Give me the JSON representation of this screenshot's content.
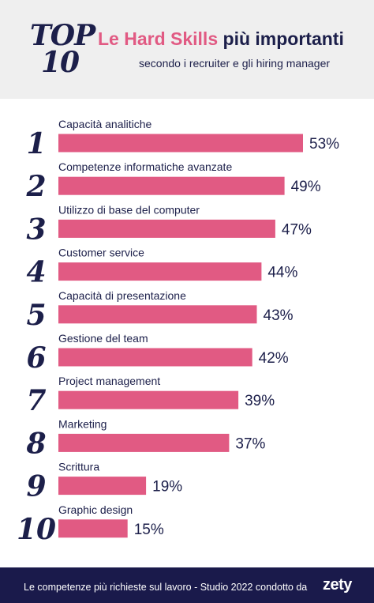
{
  "header": {
    "badge_line1": "TOP",
    "badge_line2": "10",
    "title_accent": "Le Hard Skills",
    "title_rest": "più importanti",
    "subtitle": "secondo i recruiter e gli hiring manager"
  },
  "colors": {
    "bar": "#e15a83",
    "text": "#1c1f4a",
    "header_bg": "#efefef",
    "footer_bg": "#1a1a4b"
  },
  "chart_data": {
    "type": "bar",
    "orientation": "horizontal",
    "title": "Le Hard Skills più importanti",
    "subtitle": "secondo i recruiter e gli hiring manager",
    "categories": [
      "Capacità analitiche",
      "Competenze informatiche avanzate",
      "Utilizzo di base del computer",
      "Customer service",
      "Capacità di presentazione",
      "Gestione del team",
      "Project management",
      "Marketing",
      "Scrittura",
      "Graphic design"
    ],
    "ranks": [
      "1",
      "2",
      "3",
      "4",
      "5",
      "6",
      "7",
      "8",
      "9",
      "10"
    ],
    "values": [
      53,
      49,
      47,
      44,
      43,
      42,
      39,
      37,
      19,
      15
    ],
    "value_labels": [
      "53%",
      "49%",
      "47%",
      "44%",
      "43%",
      "42%",
      "39%",
      "37%",
      "19%",
      "15%"
    ],
    "unit": "%",
    "xlim": [
      0,
      53
    ],
    "grid": false,
    "legend": "none"
  },
  "footer": {
    "source": "Le competenze più richieste sul lavoro - Studio 2022 condotto da",
    "logo": "zety"
  }
}
